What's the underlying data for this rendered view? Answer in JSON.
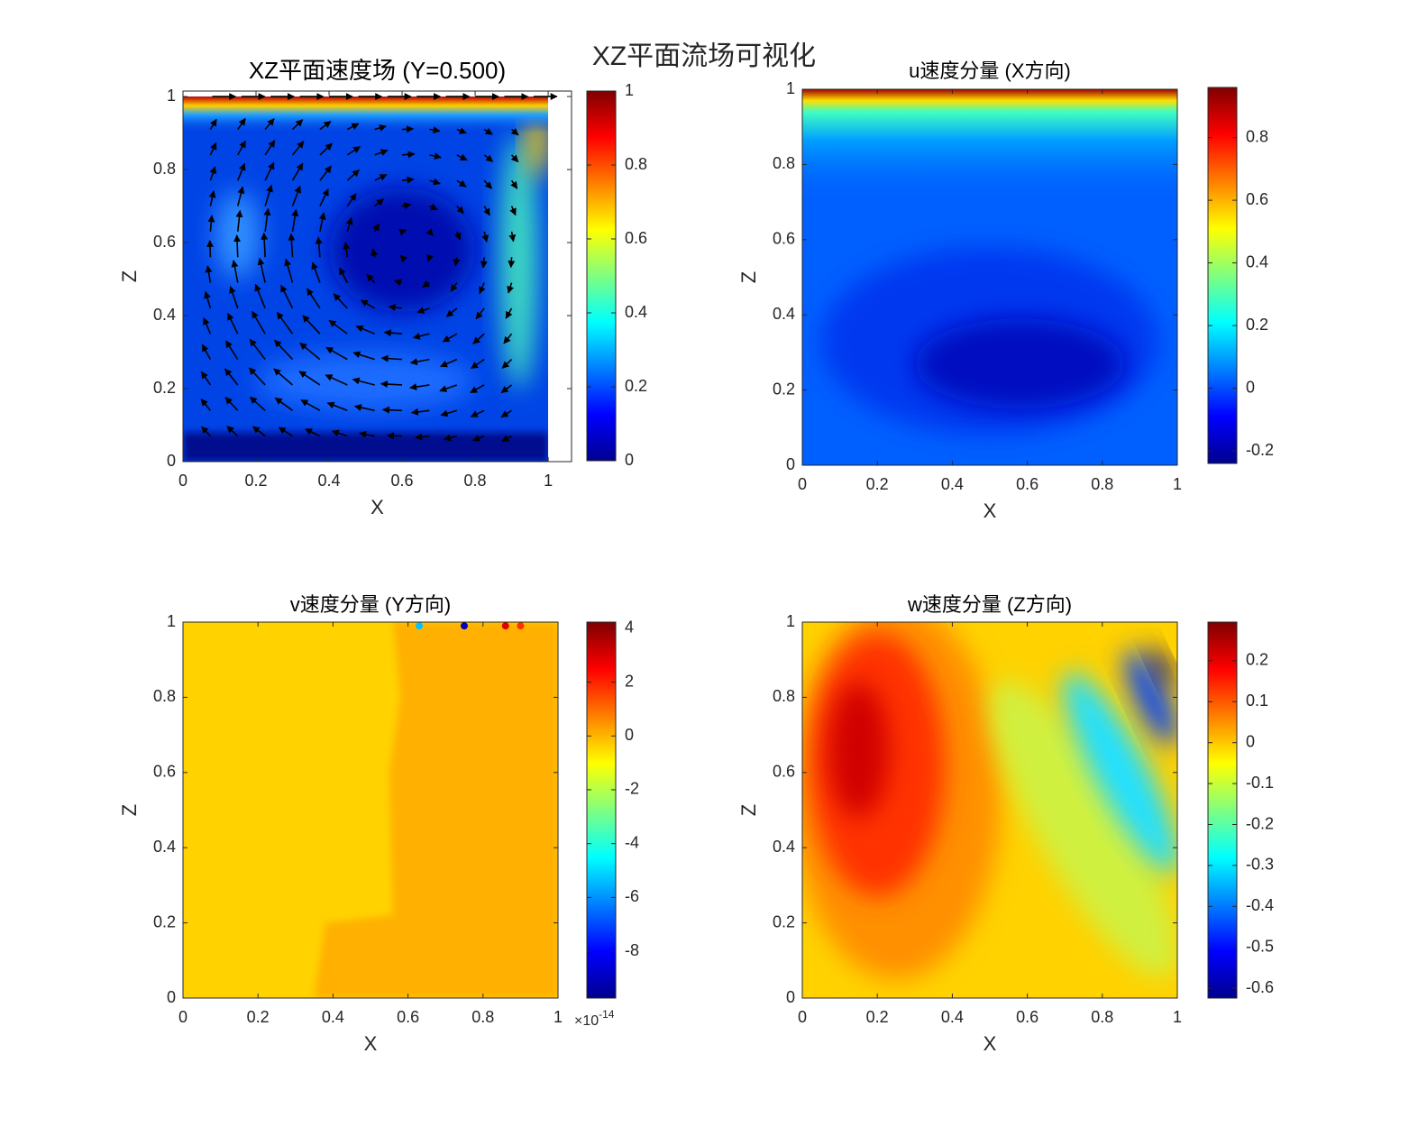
{
  "title": "XZ平面流场可视化",
  "chart_data": [
    {
      "type": "contour",
      "title": "XZ平面速度场 (Y=0.500)",
      "xlabel": "X",
      "ylabel": "Z",
      "xlim": [
        0,
        1.064
      ],
      "ylim": [
        0,
        1.015
      ],
      "xticks": [
        0,
        0.2,
        0.4,
        0.6,
        0.8,
        1
      ],
      "yticks": [
        0,
        0.2,
        0.4,
        0.6,
        0.8,
        1
      ],
      "colorbar": {
        "clim": [
          0,
          1
        ],
        "ticks": [
          0,
          0.2,
          0.4,
          0.6,
          0.8,
          1
        ]
      },
      "quiver": true
    },
    {
      "type": "contour",
      "title": "u速度分量 (X方向)",
      "xlabel": "X",
      "ylabel": "Z",
      "xlim": [
        0,
        1
      ],
      "ylim": [
        0,
        1
      ],
      "xticks": [
        0,
        0.2,
        0.4,
        0.6,
        0.8,
        1
      ],
      "yticks": [
        0,
        0.2,
        0.4,
        0.6,
        0.8,
        1
      ],
      "colorbar": {
        "clim": [
          -0.24,
          0.96
        ],
        "ticks": [
          -0.2,
          0,
          0.2,
          0.4,
          0.6,
          0.8
        ]
      }
    },
    {
      "type": "contour",
      "title": "v速度分量 (Y方向)",
      "xlabel": "X",
      "ylabel": "Z",
      "xlim": [
        0,
        1
      ],
      "ylim": [
        0,
        1
      ],
      "xticks": [
        0,
        0.2,
        0.4,
        0.6,
        0.8,
        1
      ],
      "yticks": [
        0,
        0.2,
        0.4,
        0.6,
        0.8,
        1
      ],
      "colorbar": {
        "clim": [
          -9.74,
          4.23
        ],
        "ticks": [
          -8,
          -6,
          -4,
          -2,
          0,
          2,
          4
        ],
        "scale_base": "×10",
        "scale_exponent": "-14"
      }
    },
    {
      "type": "contour",
      "title": "w速度分量 (Z方向)",
      "xlabel": "X",
      "ylabel": "Z",
      "xlim": [
        0,
        1
      ],
      "ylim": [
        0,
        1
      ],
      "xticks": [
        0,
        0.2,
        0.4,
        0.6,
        0.8,
        1
      ],
      "yticks": [
        0,
        0.2,
        0.4,
        0.6,
        0.8,
        1
      ],
      "colorbar": {
        "clim": [
          -0.624,
          0.2945
        ],
        "ticks": [
          -0.6,
          -0.5,
          -0.4,
          -0.3,
          -0.2,
          -0.1,
          0,
          0.1,
          0.2
        ]
      }
    }
  ]
}
